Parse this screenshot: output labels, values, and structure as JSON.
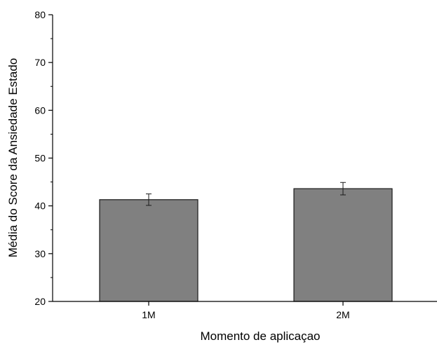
{
  "chart_data": {
    "type": "bar",
    "categories": [
      "1M",
      "2M"
    ],
    "values": [
      41.3,
      43.6
    ],
    "errors": [
      1.2,
      1.3
    ],
    "xlabel": "Momento de aplicaçao",
    "ylabel": "Média do Score da Ansiedade Estado",
    "ylim": [
      20,
      80
    ],
    "yticks": [
      "20",
      "30",
      "40",
      "50",
      "60",
      "70",
      "80"
    ],
    "grid": false,
    "colors": {
      "bar_fill": "#808080",
      "bar_stroke": "#1a1a1a",
      "axis": "#000000"
    }
  }
}
